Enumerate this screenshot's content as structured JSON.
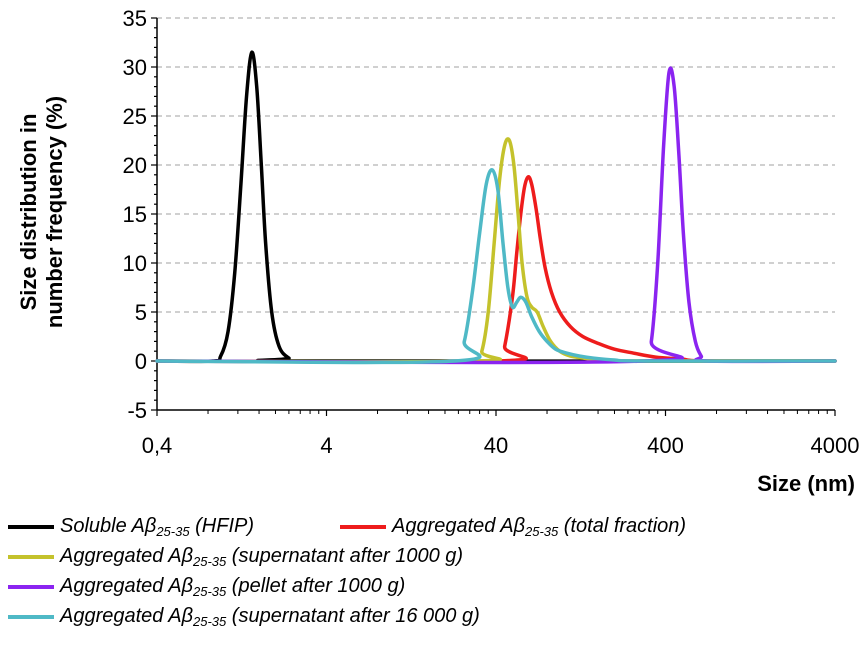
{
  "chart_data": {
    "type": "line",
    "title": "",
    "xlabel": "Size (nm)",
    "ylabel_lines": [
      "Size distribution in",
      "number frequency (%)"
    ],
    "xscale": "log",
    "xlim": [
      0.4,
      4000
    ],
    "ylim": [
      -5,
      35
    ],
    "x_tick_values": [
      0.4,
      4,
      40,
      400,
      4000
    ],
    "x_tick_labels": [
      "0,4",
      "4",
      "40",
      "400",
      "4000"
    ],
    "y_tick_values": [
      -5,
      0,
      5,
      10,
      15,
      20,
      25,
      30,
      35
    ],
    "y_tick_labels": [
      "-5",
      "0",
      "5",
      "10",
      "15",
      "20",
      "25",
      "30",
      "35"
    ],
    "grid": "horizontal-dashed",
    "legend_position": "bottom",
    "series": [
      {
        "name": "Soluble Aβ25-35 (HFIP)",
        "legend_main": "Soluble Aβ",
        "legend_sub": "25-35",
        "legend_suffix": " (HFIP)",
        "color": "#000000",
        "x": [
          0.4,
          0.85,
          0.95,
          1.05,
          1.15,
          1.25,
          1.35,
          1.45,
          1.55,
          1.65,
          1.75,
          1.9,
          2.1,
          2.4,
          2.8,
          4000
        ],
        "y": [
          0,
          0,
          0.5,
          3,
          9,
          18,
          27,
          31.5,
          28,
          20,
          12,
          5,
          1.5,
          0.3,
          0,
          0
        ]
      },
      {
        "name": "Aggregated Aβ25-35 (total fraction)",
        "legend_main": "Aggregated Aβ",
        "legend_sub": "25-35",
        "legend_suffix": " (total fraction)",
        "color": "#ee1c1c",
        "x": [
          0.4,
          42,
          45,
          50,
          53,
          56,
          59,
          62,
          65,
          69,
          73,
          78,
          85,
          95,
          110,
          130,
          160,
          200,
          260,
          350,
          500,
          700,
          4000
        ],
        "y": [
          0,
          0,
          1.5,
          6.5,
          11,
          15,
          17.8,
          18.8,
          18,
          15.5,
          12.5,
          9.5,
          7,
          5,
          3.5,
          2.5,
          1.8,
          1.2,
          0.8,
          0.4,
          0.2,
          0,
          0
        ]
      },
      {
        "name": "Aggregated Aβ25-35 (supernatant after 1000 g)",
        "legend_main": "Aggregated Aβ",
        "legend_sub": "25-35",
        "legend_suffix": " (supernatant after 1000 g)",
        "color": "#c4c22c",
        "x": [
          0.4,
          30,
          33,
          36,
          39,
          42,
          45,
          48,
          51,
          54,
          57,
          61,
          65,
          70,
          76,
          84,
          95,
          110,
          130,
          160,
          200,
          4000
        ],
        "y": [
          0,
          0,
          1,
          5,
          12,
          18.5,
          22,
          22.5,
          20,
          15,
          10,
          6.5,
          5.5,
          5,
          3.5,
          2,
          1,
          0.5,
          0.3,
          0.1,
          0,
          0
        ]
      },
      {
        "name": "Aggregated Aβ25-35 (pellet after 1000 g)",
        "legend_main": "Aggregated Aβ",
        "legend_sub": "25-35",
        "legend_suffix": " (pellet after 1000 g)",
        "color": "#8b24f0",
        "x": [
          0.4,
          300,
          330,
          360,
          390,
          420,
          450,
          480,
          510,
          550,
          600,
          650,
          700,
          4000
        ],
        "y": [
          0,
          0,
          2,
          10,
          22,
          29.5,
          28,
          21,
          13,
          6,
          2,
          0.5,
          0,
          0
        ]
      },
      {
        "name": "Aggregated Aβ25-35 (supernatant after 16 000 g)",
        "legend_main": "Aggregated Aβ",
        "legend_sub": "25-35",
        "legend_suffix": " (supernatant after 16 000 g)",
        "color": "#4fb9c6",
        "x": [
          0.4,
          23,
          26,
          29,
          32,
          35,
          38,
          41,
          44,
          47,
          50,
          53,
          56,
          60,
          65,
          72,
          80,
          90,
          105,
          125,
          150,
          200,
          300,
          4000
        ],
        "y": [
          0,
          0,
          2,
          7,
          13,
          18,
          19.5,
          17.5,
          12,
          7.5,
          5.5,
          6,
          6.5,
          6,
          4.5,
          3,
          2,
          1.2,
          0.8,
          0.5,
          0.3,
          0.1,
          0,
          0
        ]
      }
    ]
  }
}
